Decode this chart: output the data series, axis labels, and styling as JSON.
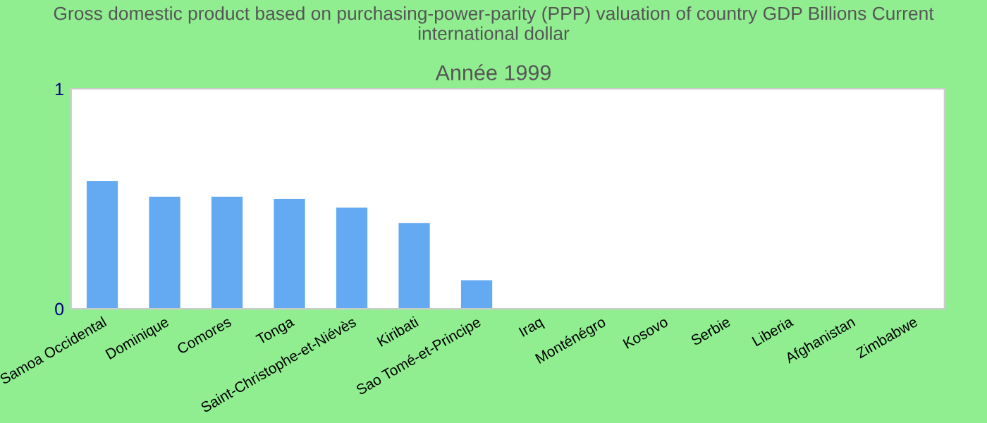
{
  "chart_data": {
    "type": "bar",
    "title": "Gross domestic product based on purchasing-power-parity (PPP) valuation of country GDP Billions Current international dollar",
    "subtitle": "Année 1999",
    "categories": [
      "Samoa Occidental",
      "Dominique",
      "Comores",
      "Tonga",
      "Saint-Christophe-et-Niévès",
      "Kiribati",
      "Sao Tomé-et-Principe",
      "Iraq",
      "Monténégro",
      "Kosovo",
      "Serbie",
      "Liberia",
      "Afghanistan",
      "Zimbabwe"
    ],
    "values": [
      0.58,
      0.51,
      0.51,
      0.5,
      0.46,
      0.39,
      0.13,
      0,
      0,
      0,
      0,
      0,
      0,
      0
    ],
    "color": "#63aaf2",
    "ylim": [
      0,
      1
    ],
    "yticks": [
      0,
      1
    ],
    "grid": false,
    "legend": false
  }
}
